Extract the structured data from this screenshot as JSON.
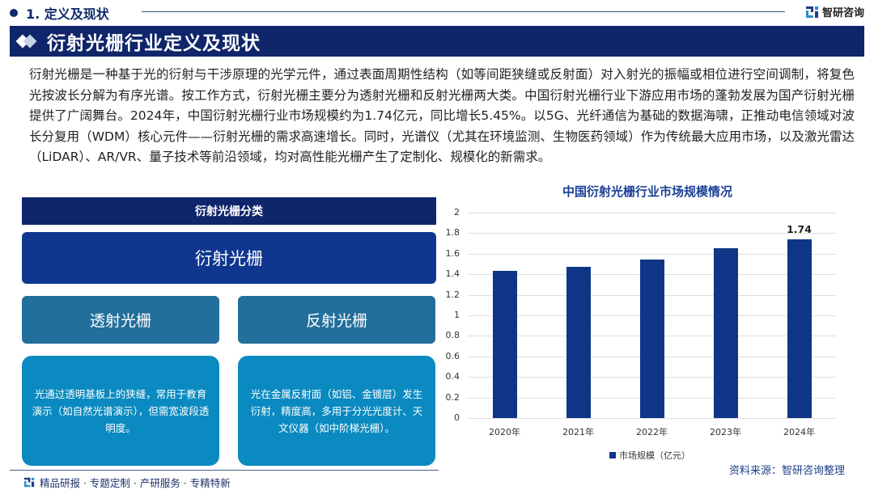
{
  "header": {
    "section_label": "1. 定义及现状",
    "brand_name": "智研咨询",
    "page_title": "衍射光栅行业定义及现状"
  },
  "intro": {
    "text": "衍射光栅是一种基于光的衍射与干涉原理的光学元件，通过表面周期性结构（如等间距狭缝或反射面）对入射光的振幅或相位进行空间调制，将复色光按波长分解为有序光谱。按工作方式，衍射光栅主要分为透射光栅和反射光栅两大类。中国衍射光栅行业下游应用市场的蓬勃发展为国产衍射光栅提供了广阔舞台。2024年，中国衍射光栅行业市场规模约为1.74亿元，同比增长5.45%。以5G、光纤通信为基础的数据海啸，正推动电信领域对波长分复用（WDM）核心元件——衍射光栅的需求高速增长。同时，光谱仪（尤其在环境监测、生物医药领域）作为传统最大应用市场，以及激光雷达（LiDAR）、AR/VR、量子技术等前沿领域，均对高性能光栅产生了定制化、规模化的新需求。"
  },
  "classification": {
    "heading": "衍射光栅分类",
    "root": "衍射光栅",
    "types": [
      {
        "label": "透射光栅",
        "description": "光通过透明基板上的狭缝，常用于教育演示（如自然光谱演示），但需宽波段透明度。"
      },
      {
        "label": "反射光栅",
        "description": "光在金属反射面（如铝、金镀层）发生衍射，精度高，多用于分光光度计、天文仪器（如中阶梯光栅）。"
      }
    ]
  },
  "footer": {
    "tagline": "精品研报 · 专题定制 · 产研服务 · 专精特新",
    "source": "资料来源：智研咨询整理"
  },
  "colors": {
    "navy": "#10266a",
    "root_box": "#10378f",
    "sub_box": "#226f9b",
    "desc_box": "#0a8ac0",
    "bar": "#0f3686",
    "chart_title": "#1a3f96"
  },
  "chart_data": {
    "type": "bar",
    "title": "中国衍射光栅行业市场规模情况",
    "categories": [
      "2020年",
      "2021年",
      "2022年",
      "2023年",
      "2024年"
    ],
    "series": [
      {
        "name": "市场规模（亿元）",
        "values": [
          1.43,
          1.47,
          1.54,
          1.65,
          1.74
        ]
      }
    ],
    "data_labels": {
      "2024年": "1.74"
    },
    "xlabel": "",
    "ylabel": "",
    "ylim": [
      0,
      2
    ],
    "yticks": [
      "0",
      "0.2",
      "0.4",
      "0.6",
      "0.8",
      "1",
      "1.2",
      "1.4",
      "1.6",
      "1.8",
      "2"
    ],
    "grid": true,
    "legend_position": "bottom"
  }
}
